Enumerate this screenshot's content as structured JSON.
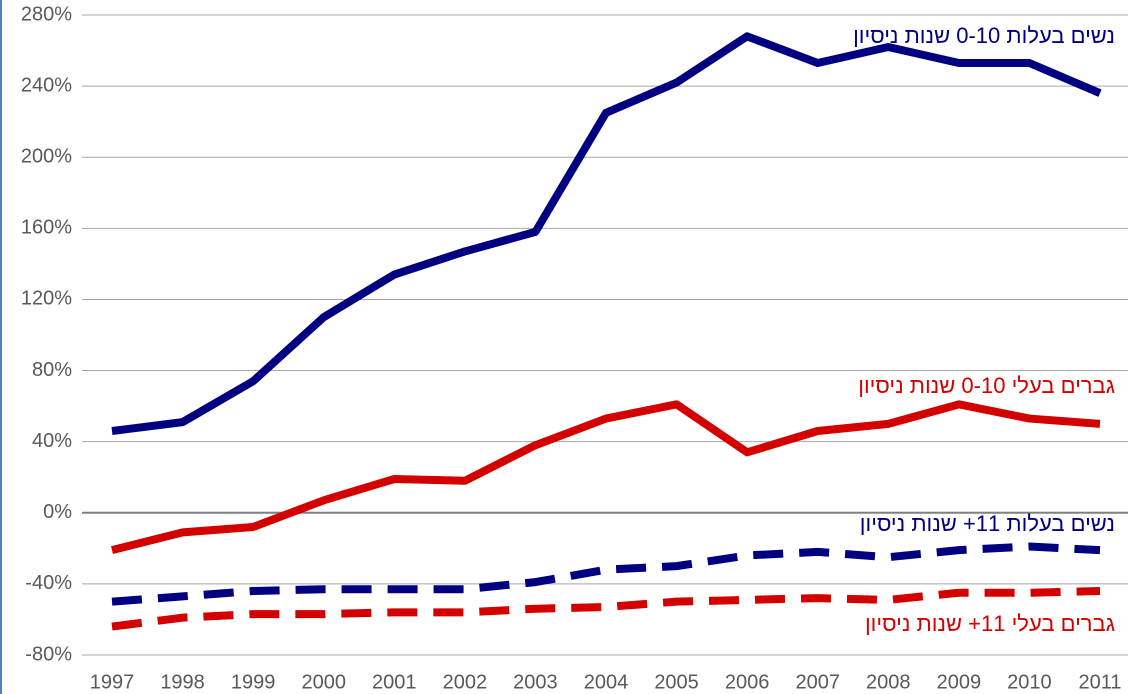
{
  "chart_data": {
    "type": "line",
    "categories": [
      "1997",
      "1998",
      "1999",
      "2000",
      "2001",
      "2002",
      "2003",
      "2004",
      "2005",
      "2006",
      "2007",
      "2008",
      "2009",
      "2010",
      "2011"
    ],
    "series": [
      {
        "name": "נשים בעלות 0-10 שנות ניסיון",
        "color": "#000080",
        "dashed": false,
        "values": [
          46,
          51,
          74,
          110,
          134,
          147,
          158,
          225,
          242,
          268,
          253,
          262,
          253,
          253,
          236
        ]
      },
      {
        "name": "גברים בעלי 0-10 שנות ניסיון",
        "color": "#d40000",
        "dashed": false,
        "values": [
          -21,
          -11,
          -8,
          7,
          19,
          18,
          38,
          53,
          61,
          34,
          46,
          50,
          61,
          53,
          50
        ]
      },
      {
        "name": "נשים בעלות 11+ שנות ניסיון",
        "color": "#000080",
        "dashed": true,
        "values": [
          -50,
          -47,
          -44,
          -43,
          -43,
          -43,
          -39,
          -32,
          -30,
          -24,
          -22,
          -25,
          -21,
          -19,
          -21
        ]
      },
      {
        "name": "גברים בעלי 11+ שנות ניסיון",
        "color": "#d40000",
        "dashed": true,
        "values": [
          -64,
          -59,
          -57,
          -57,
          -56,
          -56,
          -54,
          -53,
          -50,
          -49,
          -48,
          -49,
          -45,
          -45,
          -44
        ]
      }
    ],
    "ylim": [
      -80,
      280
    ],
    "yticks": [
      {
        "value": -80,
        "label": "-80%"
      },
      {
        "value": -40,
        "label": "-40%"
      },
      {
        "value": 0,
        "label": "0%"
      },
      {
        "value": 40,
        "label": "40%"
      },
      {
        "value": 80,
        "label": "80%"
      },
      {
        "value": 120,
        "label": "120%"
      },
      {
        "value": 160,
        "label": "160%"
      },
      {
        "value": 200,
        "label": "200%"
      },
      {
        "value": 240,
        "label": "240%"
      },
      {
        "value": 280,
        "label": "280%"
      }
    ],
    "grid": true
  }
}
